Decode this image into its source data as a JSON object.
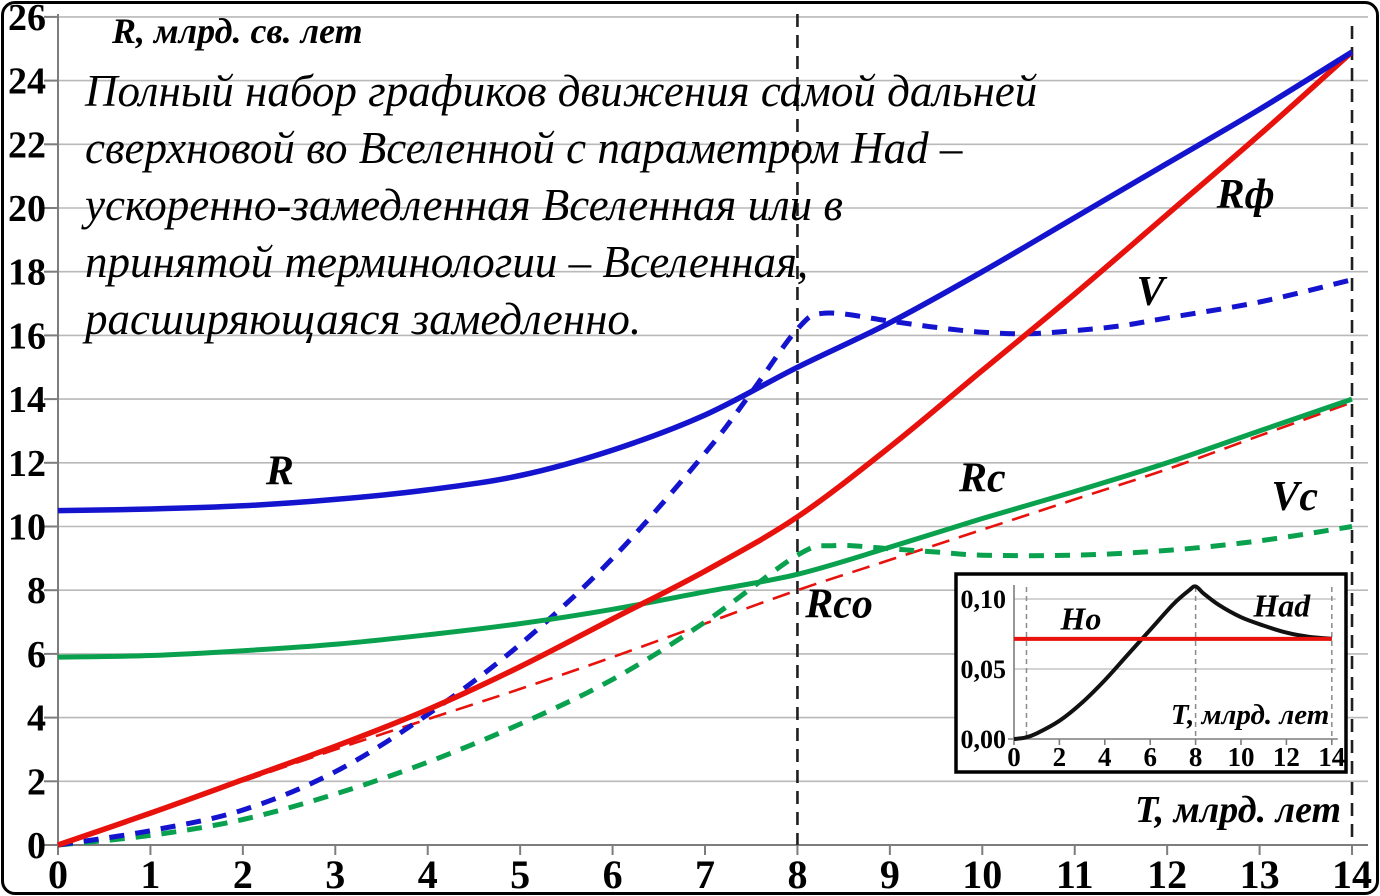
{
  "annotation": {
    "lines": [
      "Полный набор графиков движения самой дальней",
      "сверхновой во Вселенной с параметром Had –",
      "ускоренно-замедленная Вселенная или в",
      "принятой терминологии – Вселенная,",
      "расширяющаяся замедленно."
    ]
  },
  "chart_data": {
    "type": "line",
    "ylabel": "R, млрд. св. лет",
    "xlabel": "T, млрд. лет",
    "xlim": [
      0,
      14
    ],
    "ylim": [
      0,
      26
    ],
    "x_ticks": [
      0,
      1,
      2,
      3,
      4,
      5,
      6,
      7,
      8,
      9,
      10,
      11,
      12,
      13,
      14
    ],
    "y_ticks": [
      0,
      2,
      4,
      6,
      8,
      10,
      12,
      14,
      16,
      18,
      20,
      22,
      24,
      26
    ],
    "grid": "horizontal-only",
    "legend_position": "labels-on-curves",
    "colors": {
      "blue": "#1414cf",
      "red": "#e8120d",
      "green": "#0aa14e",
      "marker": "#1f1f1f",
      "gridline": "#b9b9b9",
      "axis": "#7d7d7d"
    },
    "vertical_markers": [
      {
        "x": 8
      },
      {
        "x": 14
      }
    ],
    "series": [
      {
        "id": "rco",
        "name": "Rco",
        "color": "#e8120d",
        "style": "dashed-thin",
        "width": 2.6,
        "dash": "18 10",
        "label": {
          "text": "Rco",
          "x": 8.45,
          "y": 7.15
        },
        "points": [
          [
            0,
            0
          ],
          [
            1,
            1.0
          ],
          [
            2,
            2.0
          ],
          [
            3,
            3.0
          ],
          [
            4,
            3.95
          ],
          [
            5,
            4.9
          ],
          [
            6,
            5.9
          ],
          [
            7,
            6.95
          ],
          [
            8,
            8.0
          ],
          [
            9,
            8.95
          ],
          [
            10,
            9.9
          ],
          [
            11,
            10.85
          ],
          [
            12,
            11.8
          ],
          [
            13,
            12.85
          ],
          [
            14,
            13.9
          ]
        ]
      },
      {
        "id": "vc",
        "name": "Vc",
        "color": "#0aa14e",
        "style": "dashed",
        "width": 5,
        "dash": "15 11",
        "label": {
          "text": "Vc",
          "x": 13.38,
          "y": 10.52
        },
        "points": [
          [
            0,
            0
          ],
          [
            1,
            0.3
          ],
          [
            2,
            0.8
          ],
          [
            3,
            1.6
          ],
          [
            4,
            2.6
          ],
          [
            5,
            3.8
          ],
          [
            6,
            5.2
          ],
          [
            7,
            7.0
          ],
          [
            8,
            9.1
          ],
          [
            8.4,
            9.4
          ],
          [
            9,
            9.3
          ],
          [
            9.5,
            9.2
          ],
          [
            10,
            9.1
          ],
          [
            11,
            9.1
          ],
          [
            12,
            9.25
          ],
          [
            13,
            9.55
          ],
          [
            14,
            10.0
          ]
        ]
      },
      {
        "id": "v",
        "name": "V",
        "color": "#1414cf",
        "style": "dashed",
        "width": 5,
        "dash": "15 11",
        "label": {
          "text": "V",
          "x": 11.82,
          "y": 16.95
        },
        "points": [
          [
            0,
            0
          ],
          [
            1,
            0.45
          ],
          [
            2,
            1.1
          ],
          [
            3,
            2.3
          ],
          [
            4,
            4.1
          ],
          [
            5,
            6.3
          ],
          [
            6,
            9.0
          ],
          [
            7,
            12.3
          ],
          [
            7.5,
            14.2
          ],
          [
            8,
            16.2
          ],
          [
            8.3,
            16.7
          ],
          [
            9,
            16.45
          ],
          [
            9.5,
            16.25
          ],
          [
            10,
            16.1
          ],
          [
            10.5,
            16.05
          ],
          [
            11,
            16.15
          ],
          [
            11.5,
            16.3
          ],
          [
            12,
            16.55
          ],
          [
            13,
            17.05
          ],
          [
            14,
            17.75
          ]
        ]
      },
      {
        "id": "rc",
        "name": "Rc",
        "color": "#0aa14e",
        "style": "solid",
        "width": 5,
        "label": {
          "text": "Rc",
          "x": 10.0,
          "y": 11.1
        },
        "points": [
          [
            0,
            5.9
          ],
          [
            1,
            5.95
          ],
          [
            2,
            6.1
          ],
          [
            3,
            6.3
          ],
          [
            4,
            6.6
          ],
          [
            5,
            6.95
          ],
          [
            6,
            7.4
          ],
          [
            7,
            7.95
          ],
          [
            8,
            8.5
          ],
          [
            9,
            9.35
          ],
          [
            10,
            10.25
          ],
          [
            11,
            11.1
          ],
          [
            12,
            12.0
          ],
          [
            13,
            13.0
          ],
          [
            14,
            14.0
          ]
        ]
      },
      {
        "id": "rf",
        "name": "Rф",
        "color": "#e8120d",
        "style": "solid",
        "width": 5.5,
        "label": {
          "text": "Rф",
          "x": 12.85,
          "y": 20.0
        },
        "points": [
          [
            0,
            0
          ],
          [
            1,
            1.0
          ],
          [
            2,
            2.05
          ],
          [
            3,
            3.1
          ],
          [
            4,
            4.25
          ],
          [
            5,
            5.6
          ],
          [
            6,
            7.1
          ],
          [
            7,
            8.6
          ],
          [
            8,
            10.3
          ],
          [
            9,
            12.5
          ],
          [
            10,
            14.9
          ],
          [
            11,
            17.3
          ],
          [
            12,
            19.8
          ],
          [
            13,
            22.3
          ],
          [
            14,
            24.9
          ]
        ]
      },
      {
        "id": "r",
        "name": "R",
        "color": "#1414cf",
        "style": "solid",
        "width": 5.5,
        "label": {
          "text": "R",
          "x": 2.4,
          "y": 11.32
        },
        "points": [
          [
            0,
            10.5
          ],
          [
            1,
            10.55
          ],
          [
            2,
            10.65
          ],
          [
            3,
            10.85
          ],
          [
            4,
            11.15
          ],
          [
            5,
            11.6
          ],
          [
            6,
            12.4
          ],
          [
            7,
            13.5
          ],
          [
            8,
            15.0
          ],
          [
            9,
            16.4
          ],
          [
            10,
            18.0
          ],
          [
            11,
            19.7
          ],
          [
            12,
            21.4
          ],
          [
            13,
            23.1
          ],
          [
            14,
            24.9
          ]
        ]
      }
    ],
    "inset": {
      "xlabel": "Т, млрд. лет",
      "xlim": [
        0,
        14
      ],
      "ylim": [
        0,
        0.125
      ],
      "x_ticks": [
        0,
        2,
        4,
        6,
        8,
        10,
        12,
        14
      ],
      "y_ticks": [
        {
          "v": 0.0,
          "label": "0,00"
        },
        {
          "v": 0.05,
          "label": "0,05"
        },
        {
          "v": 0.1,
          "label": "0,10"
        }
      ],
      "vertical_markers": [
        0.55,
        8,
        14
      ],
      "series": [
        {
          "id": "had",
          "name": "Had",
          "color": "#111111",
          "style": "solid",
          "width": 4,
          "label": {
            "text": "Had",
            "x": 11.8,
            "y": 0.0945
          },
          "points": [
            [
              0,
              0
            ],
            [
              0.5,
              0.001
            ],
            [
              1,
              0.004
            ],
            [
              2,
              0.013
            ],
            [
              3,
              0.026
            ],
            [
              4,
              0.042
            ],
            [
              5,
              0.06
            ],
            [
              6,
              0.078
            ],
            [
              7,
              0.096
            ],
            [
              7.7,
              0.106
            ],
            [
              8,
              0.109
            ],
            [
              8.35,
              0.104
            ],
            [
              9,
              0.096
            ],
            [
              10,
              0.087
            ],
            [
              11,
              0.081
            ],
            [
              12,
              0.076
            ],
            [
              13,
              0.073
            ],
            [
              14,
              0.0715
            ]
          ]
        },
        {
          "id": "ho",
          "name": "Ho",
          "color": "#e8120d",
          "style": "solid",
          "width": 4,
          "label": {
            "text": "Ho",
            "x": 2.95,
            "y": 0.0855
          },
          "points": [
            [
              0,
              0.0715
            ],
            [
              14,
              0.0715
            ]
          ]
        }
      ]
    }
  }
}
